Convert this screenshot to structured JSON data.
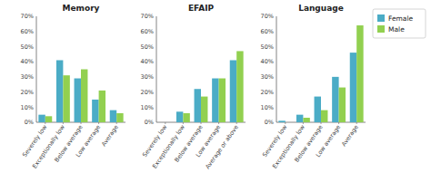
{
  "chart_data": [
    {
      "type": "bar",
      "title": "Memory",
      "categories": [
        "Severely low",
        "Exceptionally low",
        "Below average",
        "Low average",
        "Average"
      ],
      "series": [
        {
          "name": "Female",
          "color": "#4bacc6",
          "values": [
            5,
            41,
            29,
            15,
            8
          ]
        },
        {
          "name": "Male",
          "color": "#92d050",
          "values": [
            4,
            31,
            35,
            21,
            6
          ]
        }
      ],
      "ylim": [
        0,
        70
      ],
      "yticks": [
        {
          "value": 0,
          "label": "0%"
        },
        {
          "value": 10,
          "label": "10%"
        },
        {
          "value": 20,
          "label": "20%"
        },
        {
          "value": 30,
          "label": "30%"
        },
        {
          "value": 40,
          "label": "40%"
        },
        {
          "value": 50,
          "label": "50%"
        },
        {
          "value": 60,
          "label": "60%"
        },
        {
          "value": 70,
          "label": "70%"
        }
      ]
    },
    {
      "type": "bar",
      "title": "EFAIP",
      "categories": [
        "Severely low",
        "Exceptionally low",
        "Below average",
        "Low average",
        "Average or above"
      ],
      "series": [
        {
          "name": "Female",
          "color": "#4bacc6",
          "values": [
            0,
            7,
            22,
            29,
            41
          ]
        },
        {
          "name": "Male",
          "color": "#92d050",
          "values": [
            0,
            6,
            17,
            29,
            47
          ]
        }
      ],
      "ylim": [
        0,
        70
      ],
      "yticks": [
        {
          "value": 0,
          "label": "0%"
        },
        {
          "value": 10,
          "label": "10%"
        },
        {
          "value": 20,
          "label": "20%"
        },
        {
          "value": 30,
          "label": "30%"
        },
        {
          "value": 40,
          "label": "40%"
        },
        {
          "value": 50,
          "label": "50%"
        },
        {
          "value": 60,
          "label": "60%"
        },
        {
          "value": 70,
          "label": "70%"
        }
      ]
    },
    {
      "type": "bar",
      "title": "Language",
      "categories": [
        "Severely low",
        "Exceptionally low",
        "Below average",
        "Low average",
        "Average"
      ],
      "series": [
        {
          "name": "Female",
          "color": "#4bacc6",
          "values": [
            1,
            5,
            17,
            30,
            46
          ]
        },
        {
          "name": "Male",
          "color": "#92d050",
          "values": [
            0,
            3,
            8,
            23,
            64
          ]
        }
      ],
      "ylim": [
        0,
        70
      ],
      "yticks": [
        {
          "value": 0,
          "label": "0%"
        },
        {
          "value": 10,
          "label": "10%"
        },
        {
          "value": 20,
          "label": "20%"
        },
        {
          "value": 30,
          "label": "30%"
        },
        {
          "value": 40,
          "label": "40%"
        },
        {
          "value": 50,
          "label": "50%"
        },
        {
          "value": 60,
          "label": "60%"
        },
        {
          "value": 70,
          "label": "70%"
        }
      ],
      "legend": "right"
    }
  ]
}
